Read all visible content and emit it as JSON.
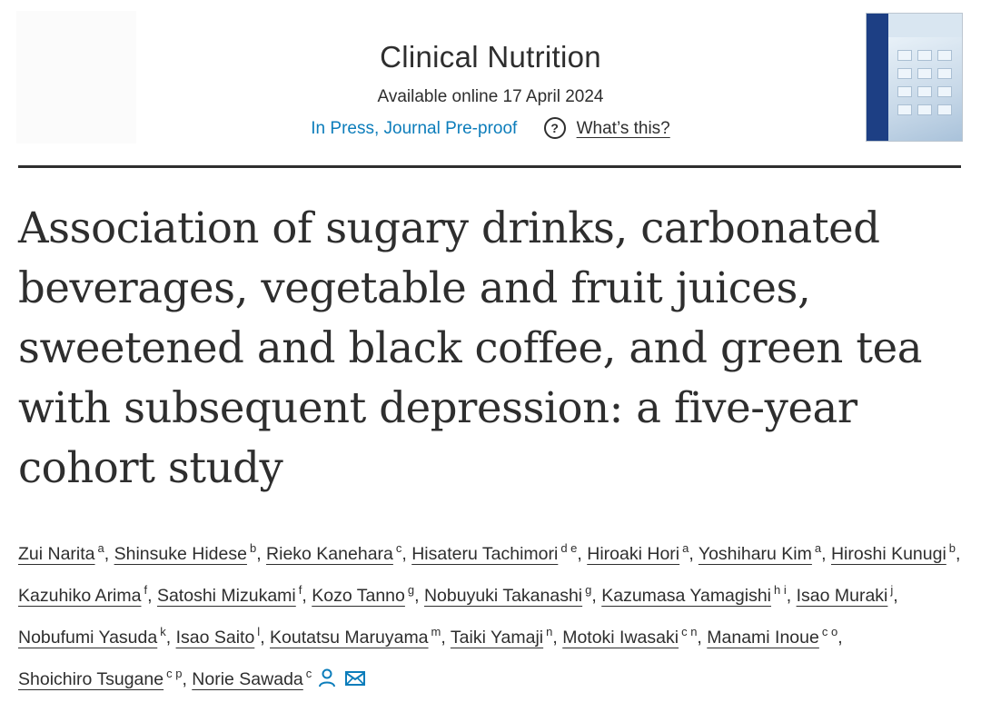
{
  "header": {
    "journal": "Clinical Nutrition",
    "available": "Available online 17 April 2024",
    "status": "In Press, Journal Pre-proof",
    "help_symbol": "?",
    "help_link": "What’s this?"
  },
  "article": {
    "title": "Association of sugary drinks, carbonated beverages, vegetable and fruit juices, sweetened and black coffee, and green tea with subsequent depression: a five-year cohort study"
  },
  "authors": [
    {
      "name": "Zui Narita",
      "aff": "a",
      "sep": ","
    },
    {
      "name": "Shinsuke Hidese",
      "aff": "b",
      "sep": ","
    },
    {
      "name": "Rieko Kanehara",
      "aff": "c",
      "sep": ","
    },
    {
      "name": "Hisateru Tachimori",
      "aff": "d e",
      "sep": ","
    },
    {
      "name": "Hiroaki Hori",
      "aff": "a",
      "sep": ","
    },
    {
      "name": "Yoshiharu Kim",
      "aff": "a",
      "sep": ","
    },
    {
      "name": "Hiroshi Kunugi",
      "aff": "b",
      "sep": ","
    },
    {
      "name": "Kazuhiko Arima",
      "aff": "f",
      "sep": ","
    },
    {
      "name": "Satoshi Mizukami",
      "aff": "f",
      "sep": ","
    },
    {
      "name": "Kozo Tanno",
      "aff": "g",
      "sep": ","
    },
    {
      "name": "Nobuyuki Takanashi",
      "aff": "g",
      "sep": ","
    },
    {
      "name": "Kazumasa Yamagishi",
      "aff": "h i",
      "sep": ","
    },
    {
      "name": "Isao Muraki",
      "aff": "j",
      "sep": ","
    },
    {
      "name": "Nobufumi Yasuda",
      "aff": "k",
      "sep": ","
    },
    {
      "name": "Isao Saito",
      "aff": "l",
      "sep": ","
    },
    {
      "name": "Koutatsu Maruyama",
      "aff": "m",
      "sep": ","
    },
    {
      "name": "Taiki Yamaji",
      "aff": "n",
      "sep": ","
    },
    {
      "name": "Motoki Iwasaki",
      "aff": "c n",
      "sep": ","
    },
    {
      "name": "Manami Inoue",
      "aff": "c o",
      "sep": ","
    },
    {
      "name": "Shoichiro Tsugane",
      "aff": "c p",
      "sep": ","
    },
    {
      "name": "Norie Sawada",
      "aff": "c",
      "sep": ""
    }
  ],
  "icons": {
    "corresponding_author": "person-icon",
    "email": "envelope-icon"
  },
  "colors": {
    "link_blue": "#0c7dbb",
    "text": "#2e2e2e",
    "cover_blue": "#1d3f84"
  }
}
